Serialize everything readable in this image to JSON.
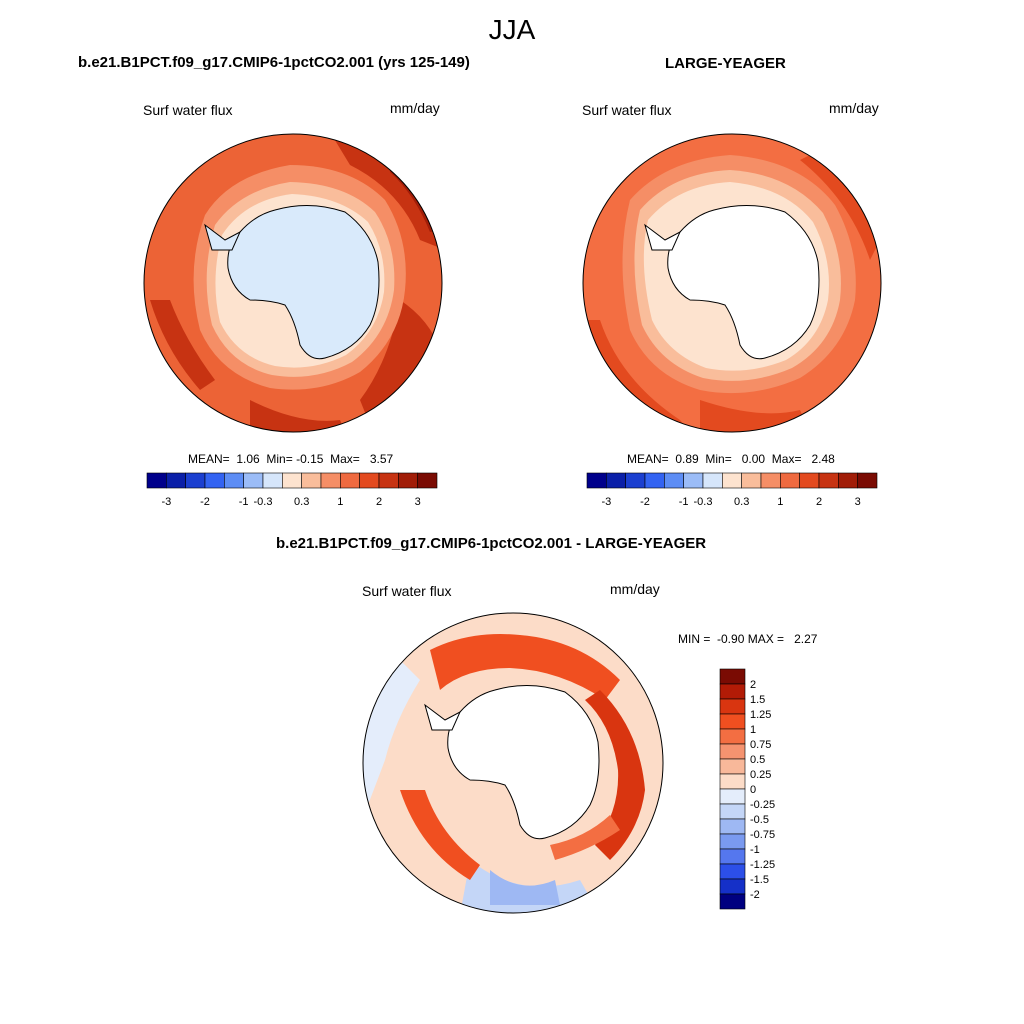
{
  "figure": {
    "title": "JJA",
    "colors": {
      "land_blue": "#d9eafb",
      "coast": "#000000"
    }
  },
  "chart_data": [
    {
      "type": "heatmap",
      "projection": "south-polar-stereographic",
      "title": "b.e21.B1PCT.f09_g17.CMIP6-1pctCO2.001 (yrs 125-149)",
      "variable": "Surf water flux",
      "units": "mm/day",
      "stats": {
        "mean_label": "MEAN=",
        "mean": "1.06",
        "min_label": "Min=",
        "min": "-0.15",
        "max_label": "Max=",
        "max": "3.57"
      },
      "colorbar": {
        "orientation": "horizontal",
        "ticks": [
          "-3",
          "-2",
          "-1",
          "-0.3",
          "0.3",
          "1",
          "2",
          "3"
        ],
        "colors": [
          "#00008b",
          "#0a1fa8",
          "#1b3fd0",
          "#3363f2",
          "#5d8df5",
          "#9bbcf7",
          "#d6e6fb",
          "#fde3cf",
          "#f9bd9b",
          "#f58e66",
          "#ef6a40",
          "#e34a1f",
          "#c73312",
          "#a11d08",
          "#7a0b03"
        ]
      }
    },
    {
      "type": "heatmap",
      "projection": "south-polar-stereographic",
      "title": "LARGE-YEAGER",
      "variable": "Surf water flux",
      "units": "mm/day",
      "stats": {
        "mean_label": "MEAN=",
        "mean": "0.89",
        "min_label": "Min=",
        "min": "0.00",
        "max_label": "Max=",
        "max": "2.48"
      },
      "colorbar": {
        "orientation": "horizontal",
        "ticks": [
          "-3",
          "-2",
          "-1",
          "-0.3",
          "0.3",
          "1",
          "2",
          "3"
        ],
        "colors": [
          "#00008b",
          "#0a1fa8",
          "#1b3fd0",
          "#3363f2",
          "#5d8df5",
          "#9bbcf7",
          "#d6e6fb",
          "#fde3cf",
          "#f9bd9b",
          "#f58e66",
          "#ef6a40",
          "#e34a1f",
          "#c73312",
          "#a11d08",
          "#7a0b03"
        ]
      }
    },
    {
      "type": "heatmap",
      "projection": "south-polar-stereographic",
      "title": "b.e21.B1PCT.f09_g17.CMIP6-1pctCO2.001 - LARGE-YEAGER",
      "variable": "Surf water flux",
      "units": "mm/day",
      "stats": {
        "min_label": "MIN =",
        "min": "-0.90",
        "max_label": "MAX =",
        "max": "2.27"
      },
      "colorbar": {
        "orientation": "vertical",
        "ticks": [
          "2",
          "1.5",
          "1.25",
          "1",
          "0.75",
          "0.5",
          "0.25",
          "0",
          "-0.25",
          "-0.5",
          "-0.75",
          "-1",
          "-1.25",
          "-1.5",
          "-2"
        ],
        "colors": [
          "#7a0b03",
          "#b21b06",
          "#d93510",
          "#f04f20",
          "#f36e42",
          "#f59370",
          "#f8b89a",
          "#fcdcc8",
          "#e4edfb",
          "#c4d6f7",
          "#9eb8f3",
          "#7a9af0",
          "#5577ee",
          "#2c4fe8",
          "#1530c8",
          "#000080"
        ]
      }
    }
  ]
}
